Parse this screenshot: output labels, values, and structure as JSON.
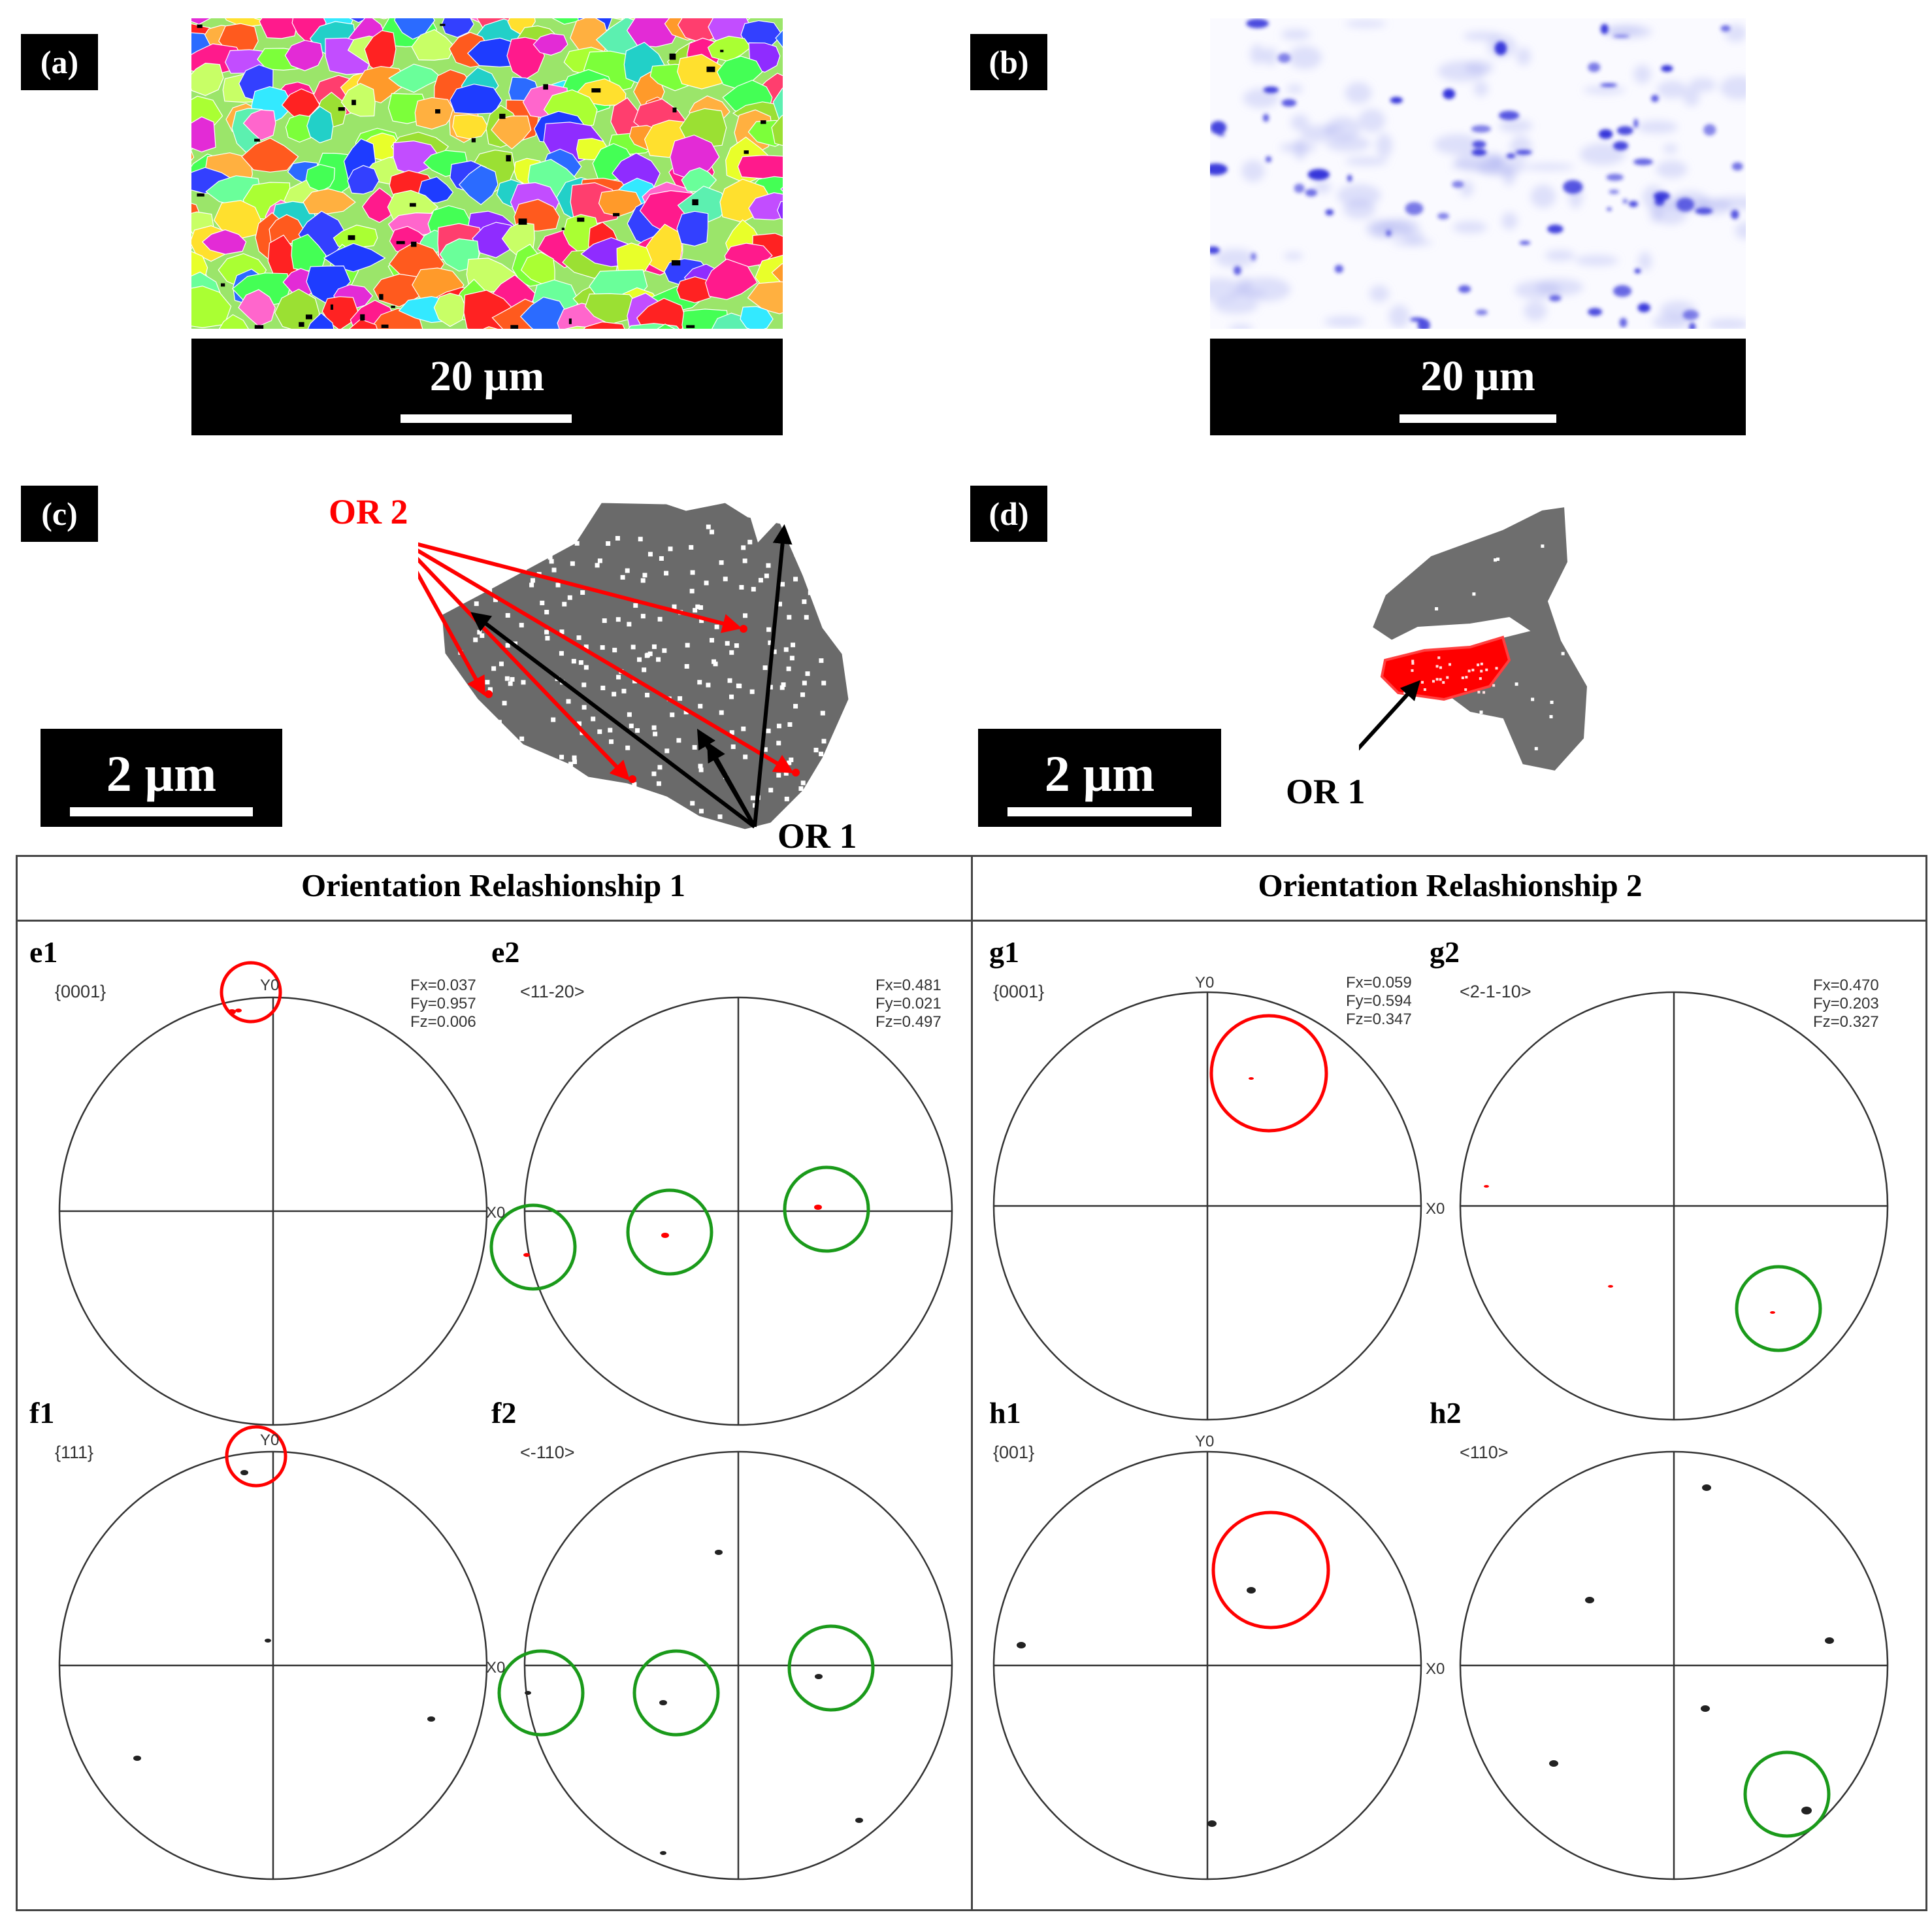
{
  "panel_labels": {
    "a": "(a)",
    "b": "(b)",
    "c": "(c)",
    "d": "(d)"
  },
  "scale_bars": {
    "a": "20 µm",
    "b": "20 µm",
    "c": "2 µm",
    "d": "2 µm"
  },
  "annotations": {
    "or2": "OR 2",
    "or1_c": "OR 1",
    "or1_d": "OR 1"
  },
  "table": {
    "col1_title": "Orientation Relashionship 1",
    "col2_title": "Orientation Relashionship 2"
  },
  "pole_figures": {
    "e1": {
      "label": "e1",
      "plane": "{0001}",
      "y_axis": "Y0",
      "fx": "Fx=0.037",
      "fy": "Fy=0.957",
      "fz": "Fz=0.006"
    },
    "e2": {
      "label": "e2",
      "plane": "<11-20>",
      "x_axis": "X0",
      "fx": "Fx=0.481",
      "fy": "Fy=0.021",
      "fz": "Fz=0.497"
    },
    "f1": {
      "label": "f1",
      "plane": "{111}",
      "y_axis": "Y0"
    },
    "f2": {
      "label": "f2",
      "plane": "<-110>",
      "x_axis": "X0"
    },
    "g1": {
      "label": "g1",
      "plane": "{0001}",
      "y_axis": "Y0",
      "fx": "Fx=0.059",
      "fy": "Fy=0.594",
      "fz": "Fz=0.347"
    },
    "g2": {
      "label": "g2",
      "plane": "<2-1-10>",
      "x_axis": "X0",
      "fx": "Fx=0.470",
      "fy": "Fy=0.203",
      "fz": "Fz=0.327"
    },
    "h1": {
      "label": "h1",
      "plane": "{001}",
      "y_axis": "Y0"
    },
    "h2": {
      "label": "h2",
      "plane": "<110>",
      "x_axis": "X0"
    }
  },
  "colors": {
    "red": "#ff0000",
    "green": "#1a9a1a",
    "blue": "#3a3adc",
    "gray": "#6e6e6e"
  }
}
